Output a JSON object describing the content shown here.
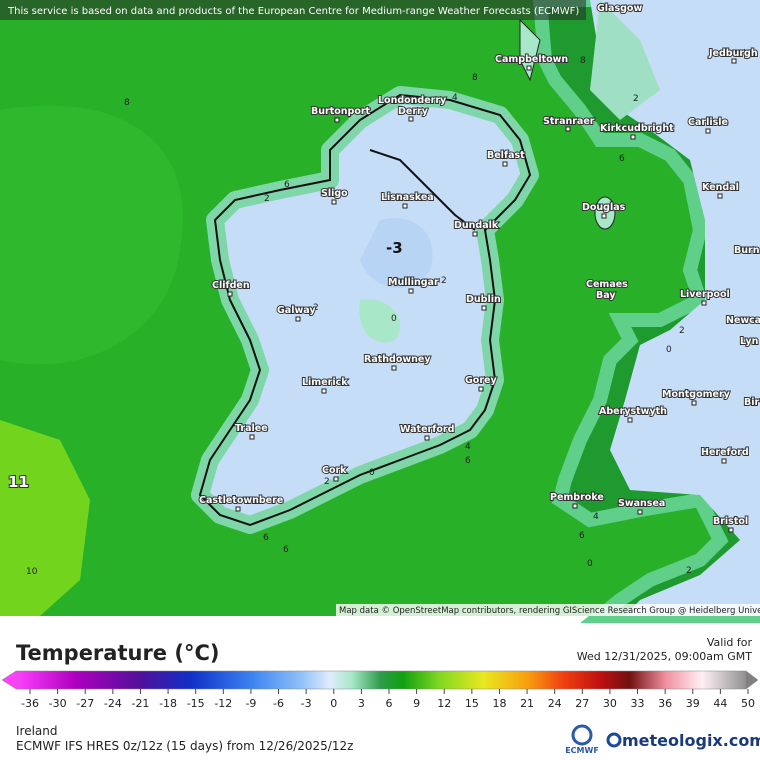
{
  "banner": "This service is based on data and products of the European Centre for Medium-range Weather Forecasts (ECMWF)",
  "map": {
    "cities": [
      "Glasgow",
      "Jedburgh",
      "Campbeltown",
      "Londonderry",
      "Derry",
      "Burtonport",
      "Stranraer",
      "Kirkcudbright",
      "Carlisle",
      "Belfast",
      "Sligo",
      "Lisnaskea",
      "Kendal",
      "Douglas",
      "Dundalk",
      "Burn",
      "Clifden",
      "Mullingar",
      "Galway",
      "Dublin",
      "Cemaes",
      "Bay",
      "Liverpool",
      "Newca",
      "Lyn",
      "Rathdowney",
      "Limerick",
      "Gorey",
      "Montgomery",
      "Bir",
      "Aberystwyth",
      "Tralee",
      "Waterford",
      "Hereford",
      "Cork",
      "Castletownbere",
      "Pembroke",
      "Swansea",
      "Bristol"
    ],
    "contour_labels": [
      "8",
      "8",
      "8",
      "6",
      "2",
      "-3",
      "2",
      "0",
      "2",
      "6",
      "2",
      "2",
      "0",
      "4",
      "6",
      "0",
      "2",
      "6",
      "6",
      "11",
      "10",
      "6",
      "0",
      "2",
      "4",
      "4"
    ],
    "attribution": "Map data © OpenStreetMap contributors, rendering GIScience Research Group @ Heidelberg University"
  },
  "legend": {
    "title": "Temperature (°C)",
    "valid_label": "Valid for",
    "valid_time": "Wed 12/31/2025, 09:00am GMT",
    "ticks": [
      "-36",
      "-30",
      "-27",
      "-24",
      "-21",
      "-18",
      "-15",
      "-12",
      "-9",
      "-6",
      "-3",
      "0",
      "3",
      "6",
      "9",
      "12",
      "15",
      "18",
      "21",
      "24",
      "27",
      "30",
      "33",
      "36",
      "39",
      "44",
      "50"
    ]
  },
  "footer": {
    "region": "Ireland",
    "model": "ECMWF IFS HRES 0z/12z (15 days) from 12/26/2025/12z",
    "ecmwf_logo": "ECMWF",
    "brand": "meteologix.com"
  }
}
